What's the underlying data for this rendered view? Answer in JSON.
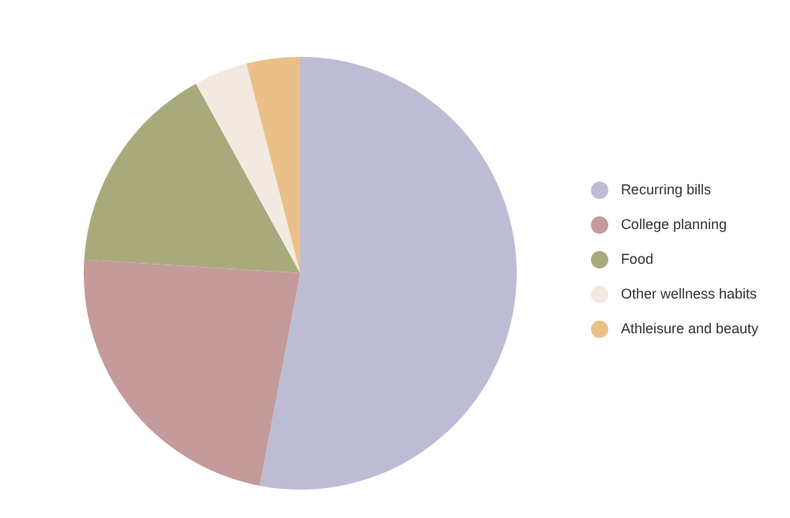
{
  "chart_data": {
    "type": "pie",
    "categories": [
      "Recurring bills",
      "College planning",
      "Food",
      "Other wellness habits",
      "Athleisure and beauty"
    ],
    "values": [
      53,
      23,
      16,
      4,
      4
    ],
    "colors": [
      "#bcbcd4",
      "#c49a9a",
      "#a8aa7c",
      "#f2e9e0",
      "#ebc088"
    ],
    "legend": "right"
  }
}
